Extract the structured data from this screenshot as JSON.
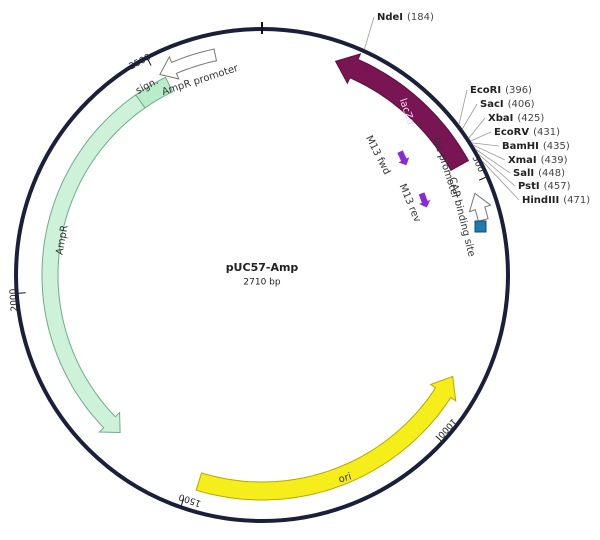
{
  "plasmid": {
    "name": "pUC57-Amp",
    "size": "2710 bp",
    "ticks": [
      "500",
      "1000",
      "1500",
      "2000",
      "2500"
    ],
    "features": [
      {
        "label": "lacZα"
      },
      {
        "label": "lac promoter"
      },
      {
        "label": "CAP binding site"
      },
      {
        "label": "M13 fwd"
      },
      {
        "label": "M13 rev"
      },
      {
        "label": "AmpR promoter"
      },
      {
        "label": "sign."
      },
      {
        "label": "AmpR"
      },
      {
        "label": "ori"
      }
    ],
    "sites": [
      {
        "name": "NdeI",
        "position": "(184)"
      },
      {
        "name": "EcoRI",
        "position": "(396)"
      },
      {
        "name": "SacI",
        "position": "(406)"
      },
      {
        "name": "XbaI",
        "position": "(425)"
      },
      {
        "name": "EcoRV",
        "position": "(431)"
      },
      {
        "name": "BamHI",
        "position": "(435)"
      },
      {
        "name": "XmaI",
        "position": "(439)"
      },
      {
        "name": "SalI",
        "position": "(448)"
      },
      {
        "name": "PstI",
        "position": "(457)"
      },
      {
        "name": "HindIII",
        "position": "(471)"
      }
    ]
  }
}
